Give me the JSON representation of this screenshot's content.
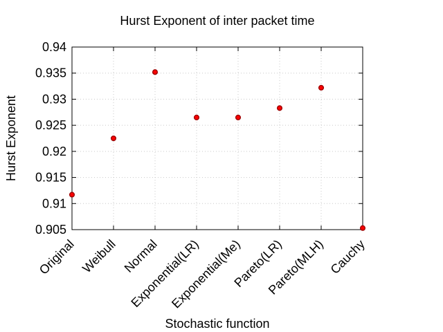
{
  "chart_data": {
    "type": "scatter",
    "title": "Hurst Exponent of inter packet time",
    "xlabel": "Stochastic function",
    "ylabel": "Hurst Exponent",
    "categories": [
      "Original",
      "Weibull",
      "Normal",
      "Exponential(LR)",
      "Exponential(Me)",
      "Pareto(LR)",
      "Pareto(MLH)",
      "Cauchy"
    ],
    "series": [
      {
        "values": [
          0.9117,
          0.9225,
          0.9352,
          0.9265,
          0.9265,
          0.9283,
          0.9322,
          0.9053
        ]
      }
    ],
    "ylim": [
      0.905,
      0.94
    ],
    "yticks": [
      "0.905",
      "0.91",
      "0.915",
      "0.92",
      "0.925",
      "0.93",
      "0.935",
      "0.94"
    ],
    "grid": true,
    "marker_color": "#ff0000"
  }
}
